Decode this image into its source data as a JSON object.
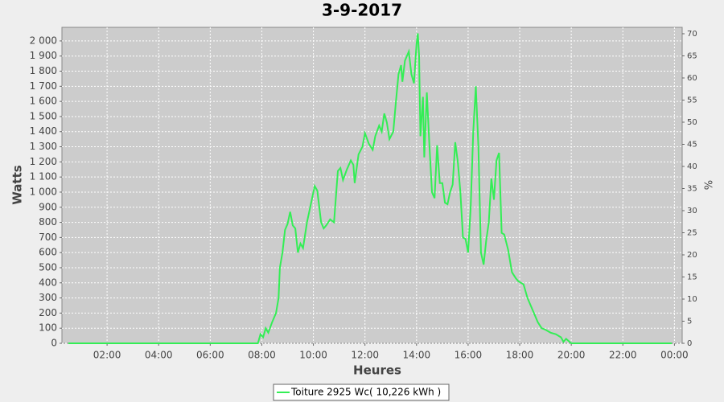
{
  "chart_data": {
    "type": "line",
    "title": "3-9-2017",
    "x_label": "Heures",
    "y_label": "Watts",
    "y2_label": "%",
    "x": [
      0.5,
      7.85,
      7.95,
      8.05,
      8.15,
      8.25,
      8.4,
      8.55,
      8.65,
      8.7,
      8.8,
      8.9,
      9.0,
      9.1,
      9.2,
      9.3,
      9.4,
      9.5,
      9.6,
      9.75,
      9.9,
      10.05,
      10.15,
      10.3,
      10.4,
      10.5,
      10.65,
      10.8,
      10.95,
      11.05,
      11.15,
      11.3,
      11.45,
      11.55,
      11.6,
      11.75,
      11.9,
      12.0,
      12.15,
      12.3,
      12.4,
      12.55,
      12.65,
      12.75,
      12.85,
      12.95,
      13.1,
      13.2,
      13.3,
      13.4,
      13.45,
      13.55,
      13.7,
      13.8,
      13.9,
      14.0,
      14.05,
      14.1,
      14.15,
      14.25,
      14.3,
      14.4,
      14.5,
      14.6,
      14.7,
      14.8,
      14.9,
      15.0,
      15.1,
      15.2,
      15.3,
      15.4,
      15.5,
      15.6,
      15.7,
      15.8,
      15.9,
      16.0,
      16.1,
      16.2,
      16.3,
      16.4,
      16.5,
      16.6,
      16.7,
      16.8,
      16.9,
      17.0,
      17.1,
      17.2,
      17.3,
      17.4,
      17.55,
      17.7,
      17.85,
      17.95,
      18.15,
      18.3,
      18.5,
      18.7,
      18.85,
      19.0,
      19.2,
      19.4,
      19.6,
      19.7,
      19.8,
      20.0,
      23.9
    ],
    "series": [
      {
        "name": "Toiture 2925 Wc( 10,226 kWh )",
        "color": "#33ee55",
        "values": [
          0,
          0,
          60,
          40,
          100,
          70,
          140,
          200,
          300,
          500,
          600,
          750,
          790,
          870,
          780,
          760,
          600,
          660,
          630,
          800,
          920,
          1040,
          1010,
          800,
          760,
          780,
          820,
          800,
          1140,
          1160,
          1080,
          1150,
          1210,
          1180,
          1060,
          1250,
          1300,
          1390,
          1320,
          1280,
          1370,
          1440,
          1400,
          1520,
          1460,
          1350,
          1400,
          1600,
          1780,
          1840,
          1730,
          1870,
          1930,
          1780,
          1720,
          1980,
          2050,
          1900,
          1370,
          1630,
          1230,
          1660,
          1310,
          1000,
          960,
          1310,
          1060,
          1060,
          930,
          920,
          1000,
          1050,
          1330,
          1200,
          1000,
          700,
          690,
          600,
          900,
          1400,
          1700,
          1300,
          600,
          520,
          680,
          800,
          1090,
          950,
          1210,
          1260,
          730,
          720,
          620,
          470,
          430,
          410,
          390,
          300,
          220,
          140,
          100,
          90,
          70,
          60,
          40,
          10,
          30,
          0,
          0
        ]
      }
    ],
    "xlim": [
      0.25,
      24.3
    ],
    "xticks": [
      {
        "value": 2,
        "label": "02:00"
      },
      {
        "value": 4,
        "label": "04:00"
      },
      {
        "value": 6,
        "label": "06:00"
      },
      {
        "value": 8,
        "label": "08:00"
      },
      {
        "value": 10,
        "label": "10:00"
      },
      {
        "value": 12,
        "label": "12:00"
      },
      {
        "value": 14,
        "label": "14:00"
      },
      {
        "value": 16,
        "label": "16:00"
      },
      {
        "value": 18,
        "label": "18:00"
      },
      {
        "value": 20,
        "label": "20:00"
      },
      {
        "value": 22,
        "label": "22:00"
      },
      {
        "value": 24,
        "label": "00:00"
      }
    ],
    "ylim": [
      0,
      2090
    ],
    "yticks": [
      0,
      100,
      200,
      300,
      400,
      500,
      600,
      700,
      800,
      900,
      {
        "value": 1000,
        "label": "1 000"
      },
      {
        "value": 1100,
        "label": "1 100"
      },
      {
        "value": 1200,
        "label": "1 200"
      },
      {
        "value": 1300,
        "label": "1 300"
      },
      {
        "value": 1400,
        "label": "1 400"
      },
      {
        "value": 1500,
        "label": "1 500"
      },
      {
        "value": 1600,
        "label": "1 600"
      },
      {
        "value": 1700,
        "label": "1 700"
      },
      {
        "value": 1800,
        "label": "1 800"
      },
      {
        "value": 1900,
        "label": "1 900"
      },
      {
        "value": 2000,
        "label": "2 000"
      }
    ],
    "y2lim": [
      0,
      71.45
    ],
    "y2ticks": [
      0,
      5,
      10,
      15,
      20,
      25,
      30,
      35,
      40,
      45,
      50,
      55,
      60,
      65,
      70
    ],
    "grid": true
  }
}
